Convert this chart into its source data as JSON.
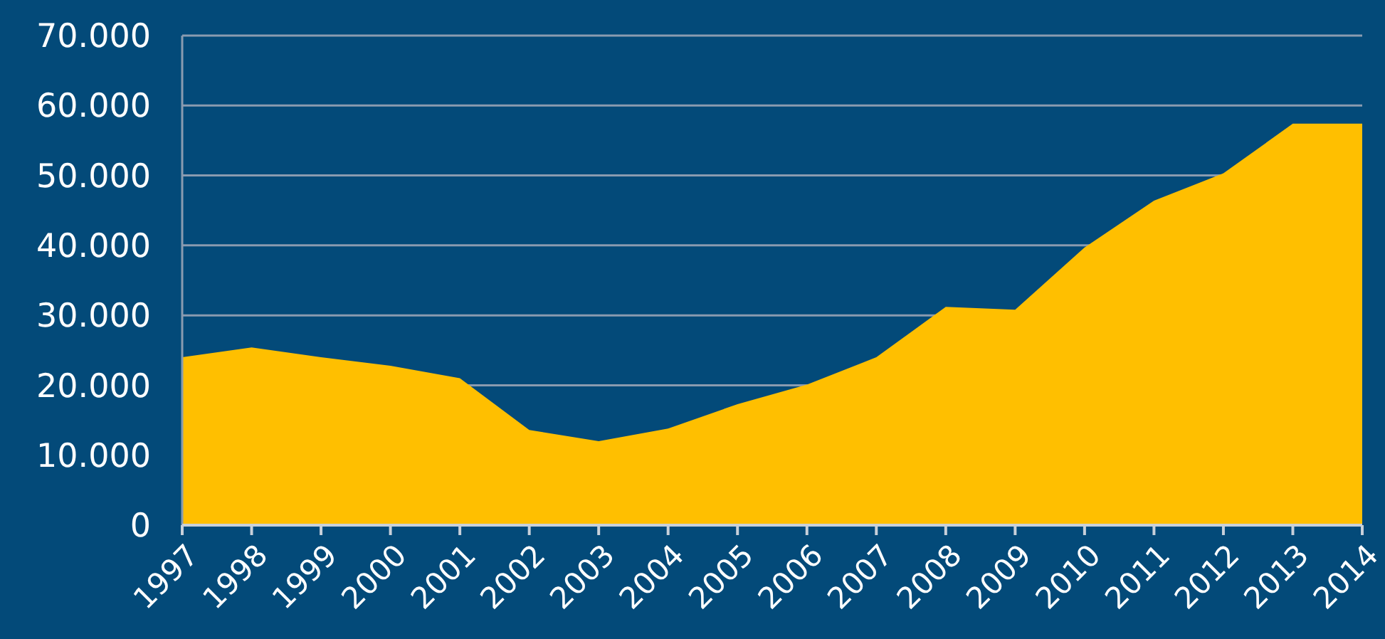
{
  "chart_data": {
    "type": "area",
    "categories": [
      "1997",
      "1998",
      "1999",
      "2000",
      "2001",
      "2002",
      "2003",
      "2004",
      "2005",
      "2006",
      "2007",
      "2008",
      "2009",
      "2010",
      "2011",
      "2012",
      "2013",
      "2014"
    ],
    "series": [
      {
        "color": "#ffbf00",
        "values": [
          24000,
          25400,
          24000,
          22800,
          21000,
          13600,
          12000,
          13800,
          17300,
          20100,
          24000,
          31200,
          30800,
          39700,
          46400,
          50300,
          57400,
          57400
        ]
      }
    ],
    "ylim": [
      0,
      70000
    ],
    "yticks": [
      {
        "value": 0,
        "label": "0"
      },
      {
        "value": 10000,
        "label": "10.000"
      },
      {
        "value": 20000,
        "label": "20.000"
      },
      {
        "value": 30000,
        "label": "30.000"
      },
      {
        "value": 40000,
        "label": "40.000"
      },
      {
        "value": 50000,
        "label": "50.000"
      },
      {
        "value": 60000,
        "label": "60.000"
      },
      {
        "value": 70000,
        "label": "70.000"
      }
    ],
    "grid": "y"
  }
}
